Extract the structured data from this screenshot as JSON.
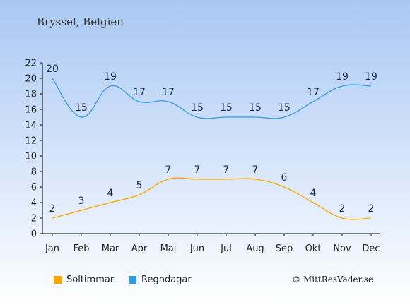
{
  "chart_data": {
    "type": "line",
    "title": "Bryssel, Belgien",
    "categories": [
      "Jan",
      "Feb",
      "Mar",
      "Apr",
      "Maj",
      "Jun",
      "Jul",
      "Aug",
      "Sep",
      "Okt",
      "Nov",
      "Dec"
    ],
    "series": [
      {
        "name": "Soltimmar",
        "values": [
          2,
          3,
          4,
          5,
          7,
          7,
          7,
          7,
          6,
          4,
          2,
          2
        ],
        "color": "#FFA500"
      },
      {
        "name": "Regndagar",
        "values": [
          20,
          15,
          19,
          17,
          17,
          15,
          15,
          15,
          15,
          17,
          19,
          19
        ],
        "color": "#3399E6"
      }
    ],
    "ylim": [
      0,
      22
    ],
    "yticks": [
      0,
      2,
      4,
      6,
      8,
      10,
      12,
      14,
      16,
      18,
      20,
      22
    ],
    "grid": false,
    "legend": "bottom-left",
    "xlabel": "",
    "ylabel": ""
  },
  "copyright": "© MittResVader.se",
  "colors": {
    "background_top": "#A9C8F4",
    "background_bottom": "#FFFFFF"
  }
}
